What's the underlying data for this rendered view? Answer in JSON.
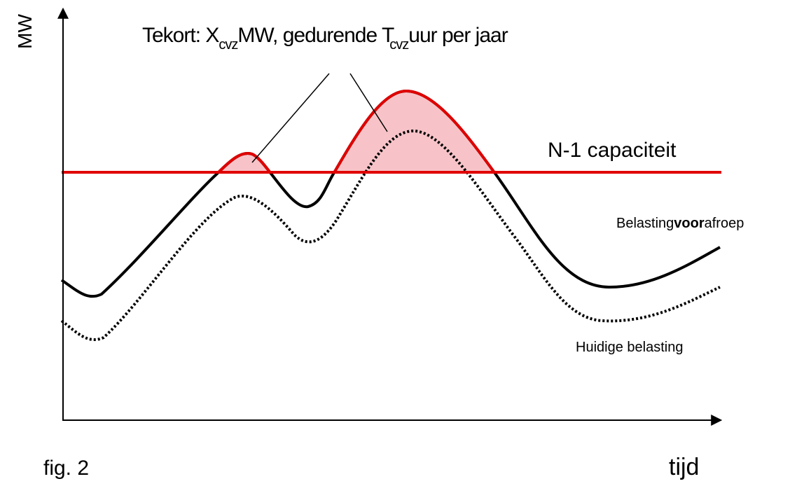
{
  "axes": {
    "y_label": "MW",
    "x_label": "tijd"
  },
  "caption": "fig. 2",
  "annotation": {
    "parts": [
      "Tekort: X",
      "cvz",
      "MW, gedurende T",
      "cvz",
      "uur per jaar"
    ]
  },
  "capacity_label": "N-1 capaciteit",
  "future_load_label": {
    "parts": [
      "Belasting",
      "voor",
      "afroep"
    ]
  },
  "current_load_label": "Huidige belasting"
}
